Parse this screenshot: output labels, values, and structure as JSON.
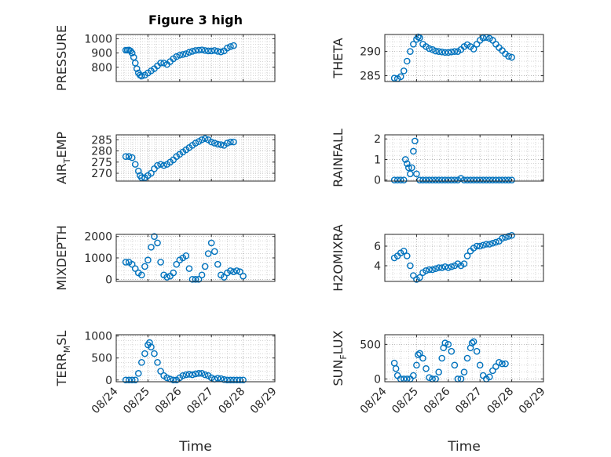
{
  "figure_title": "Figure 3 high",
  "colors": {
    "marker": "#0072BD",
    "axis": "#262626",
    "grid": "#bfbfbf"
  },
  "chart_data": [
    {
      "type": "scatter",
      "ylabel": "PRESSURE",
      "title": "Figure 3 high",
      "yticks": [
        800,
        900,
        1000
      ],
      "ytick_labels": [
        "800",
        "900",
        "1000"
      ],
      "ylim": [
        700,
        1030
      ],
      "xlim": [
        "08/24",
        "08/29"
      ],
      "grid": true,
      "points": [
        [
          0.3,
          920
        ],
        [
          0.35,
          920
        ],
        [
          0.4,
          921
        ],
        [
          0.45,
          915
        ],
        [
          0.5,
          900
        ],
        [
          0.55,
          870
        ],
        [
          0.6,
          830
        ],
        [
          0.65,
          790
        ],
        [
          0.7,
          760
        ],
        [
          0.75,
          745
        ],
        [
          0.8,
          738
        ],
        [
          0.9,
          745
        ],
        [
          1.0,
          760
        ],
        [
          1.1,
          775
        ],
        [
          1.2,
          790
        ],
        [
          1.3,
          810
        ],
        [
          1.4,
          830
        ],
        [
          1.5,
          830
        ],
        [
          1.6,
          820
        ],
        [
          1.7,
          840
        ],
        [
          1.8,
          860
        ],
        [
          1.9,
          875
        ],
        [
          2.0,
          885
        ],
        [
          2.1,
          890
        ],
        [
          2.2,
          895
        ],
        [
          2.3,
          905
        ],
        [
          2.4,
          912
        ],
        [
          2.5,
          918
        ],
        [
          2.6,
          920
        ],
        [
          2.7,
          922
        ],
        [
          2.8,
          918
        ],
        [
          2.9,
          915
        ],
        [
          3.0,
          915
        ],
        [
          3.1,
          918
        ],
        [
          3.2,
          912
        ],
        [
          3.3,
          908
        ],
        [
          3.4,
          915
        ],
        [
          3.5,
          935
        ],
        [
          3.6,
          945
        ],
        [
          3.7,
          952
        ]
      ]
    },
    {
      "type": "scatter",
      "ylabel": "THETA",
      "yticks": [
        285,
        290
      ],
      "ytick_labels": [
        "285",
        "290"
      ],
      "ylim": [
        283.8,
        293.5
      ],
      "xlim": [
        "08/24",
        "08/29"
      ],
      "grid": true,
      "points": [
        [
          0.3,
          284.5
        ],
        [
          0.4,
          284.4
        ],
        [
          0.5,
          284.8
        ],
        [
          0.6,
          286
        ],
        [
          0.7,
          288
        ],
        [
          0.8,
          290
        ],
        [
          0.9,
          291.5
        ],
        [
          1.0,
          292.5
        ],
        [
          1.05,
          293
        ],
        [
          1.1,
          292.8
        ],
        [
          1.2,
          291.5
        ],
        [
          1.3,
          291
        ],
        [
          1.4,
          290.6
        ],
        [
          1.5,
          290.4
        ],
        [
          1.6,
          290.1
        ],
        [
          1.7,
          290
        ],
        [
          1.8,
          289.9
        ],
        [
          1.9,
          289.8
        ],
        [
          2.0,
          289.8
        ],
        [
          2.1,
          289.9
        ],
        [
          2.2,
          290
        ],
        [
          2.3,
          290
        ],
        [
          2.4,
          290.4
        ],
        [
          2.5,
          291
        ],
        [
          2.6,
          291.4
        ],
        [
          2.7,
          291
        ],
        [
          2.8,
          290.5
        ],
        [
          2.9,
          291.5
        ],
        [
          3.0,
          292.3
        ],
        [
          3.1,
          292.8
        ],
        [
          3.2,
          292.9
        ],
        [
          3.3,
          292.7
        ],
        [
          3.4,
          292.3
        ],
        [
          3.5,
          291.5
        ],
        [
          3.6,
          290.8
        ],
        [
          3.7,
          290.2
        ],
        [
          3.8,
          289.5
        ],
        [
          3.9,
          289
        ],
        [
          4.0,
          288.8
        ]
      ]
    },
    {
      "type": "scatter",
      "ylabel": "AIR_TEMP",
      "yticks": [
        270,
        275,
        280,
        285
      ],
      "ytick_labels": [
        "270",
        "275",
        "280",
        "285"
      ],
      "ylim": [
        266.5,
        287.2
      ],
      "xlim": [
        "08/24",
        "08/29"
      ],
      "grid": true,
      "points": [
        [
          0.3,
          277.5
        ],
        [
          0.4,
          277.5
        ],
        [
          0.5,
          277
        ],
        [
          0.6,
          274
        ],
        [
          0.7,
          271
        ],
        [
          0.75,
          269
        ],
        [
          0.8,
          268
        ],
        [
          0.9,
          268
        ],
        [
          1.0,
          269
        ],
        [
          1.1,
          270
        ],
        [
          1.2,
          272
        ],
        [
          1.3,
          273.5
        ],
        [
          1.4,
          274
        ],
        [
          1.5,
          273.5
        ],
        [
          1.6,
          274
        ],
        [
          1.7,
          275
        ],
        [
          1.8,
          276
        ],
        [
          1.9,
          277.5
        ],
        [
          2.0,
          278.5
        ],
        [
          2.1,
          279.5
        ],
        [
          2.2,
          280.5
        ],
        [
          2.3,
          281.5
        ],
        [
          2.4,
          282.5
        ],
        [
          2.5,
          283.5
        ],
        [
          2.6,
          284.2
        ],
        [
          2.7,
          285
        ],
        [
          2.8,
          285.5
        ],
        [
          2.9,
          285
        ],
        [
          3.0,
          284
        ],
        [
          3.1,
          283.5
        ],
        [
          3.2,
          283
        ],
        [
          3.3,
          282.8
        ],
        [
          3.4,
          282.5
        ],
        [
          3.5,
          283.5
        ],
        [
          3.6,
          284
        ],
        [
          3.7,
          284
        ]
      ]
    },
    {
      "type": "scatter",
      "ylabel": "RAINFALL",
      "yticks": [
        0,
        1,
        2
      ],
      "ytick_labels": [
        "0",
        "1",
        "2"
      ],
      "ylim": [
        -0.05,
        2.2
      ],
      "xlim": [
        "08/24",
        "08/29"
      ],
      "grid": true,
      "points": [
        [
          0.3,
          0
        ],
        [
          0.4,
          0
        ],
        [
          0.5,
          0
        ],
        [
          0.6,
          0
        ],
        [
          0.65,
          1.0
        ],
        [
          0.7,
          0.8
        ],
        [
          0.75,
          0.6
        ],
        [
          0.8,
          0.3
        ],
        [
          0.85,
          0.6
        ],
        [
          0.9,
          1.4
        ],
        [
          0.95,
          1.9
        ],
        [
          1.0,
          0.3
        ],
        [
          1.1,
          0
        ],
        [
          1.2,
          0
        ],
        [
          1.3,
          0
        ],
        [
          1.4,
          0
        ],
        [
          1.5,
          0
        ],
        [
          1.6,
          0
        ],
        [
          1.7,
          0
        ],
        [
          1.8,
          0
        ],
        [
          1.9,
          0
        ],
        [
          2.0,
          0
        ],
        [
          2.1,
          0
        ],
        [
          2.2,
          0
        ],
        [
          2.3,
          0
        ],
        [
          2.4,
          0.08
        ],
        [
          2.5,
          0
        ],
        [
          2.6,
          0
        ],
        [
          2.7,
          0
        ],
        [
          2.8,
          0
        ],
        [
          2.9,
          0
        ],
        [
          3.0,
          0
        ],
        [
          3.1,
          0
        ],
        [
          3.2,
          0
        ],
        [
          3.3,
          0
        ],
        [
          3.4,
          0
        ],
        [
          3.5,
          0
        ],
        [
          3.6,
          0
        ],
        [
          3.7,
          0
        ],
        [
          3.8,
          0
        ],
        [
          3.9,
          0
        ],
        [
          4.0,
          0
        ]
      ]
    },
    {
      "type": "scatter",
      "ylabel": "MIXDEPTH",
      "yticks": [
        0,
        1000,
        2000
      ],
      "ytick_labels": [
        "0",
        "1000",
        "2000"
      ],
      "ylim": [
        -100,
        2100
      ],
      "xlim": [
        "08/24",
        "08/29"
      ],
      "grid": true,
      "points": [
        [
          0.3,
          800
        ],
        [
          0.4,
          800
        ],
        [
          0.5,
          700
        ],
        [
          0.6,
          500
        ],
        [
          0.7,
          300
        ],
        [
          0.8,
          200
        ],
        [
          0.9,
          600
        ],
        [
          1.0,
          900
        ],
        [
          1.1,
          1500
        ],
        [
          1.2,
          2000
        ],
        [
          1.3,
          1700
        ],
        [
          1.4,
          800
        ],
        [
          1.5,
          200
        ],
        [
          1.6,
          100
        ],
        [
          1.7,
          150
        ],
        [
          1.8,
          300
        ],
        [
          1.9,
          700
        ],
        [
          2.0,
          900
        ],
        [
          2.1,
          1000
        ],
        [
          2.2,
          1100
        ],
        [
          2.3,
          500
        ],
        [
          2.4,
          0
        ],
        [
          2.5,
          0
        ],
        [
          2.6,
          0
        ],
        [
          2.7,
          200
        ],
        [
          2.8,
          600
        ],
        [
          2.9,
          1200
        ],
        [
          3.0,
          1700
        ],
        [
          3.1,
          1300
        ],
        [
          3.2,
          700
        ],
        [
          3.3,
          200
        ],
        [
          3.4,
          100
        ],
        [
          3.5,
          300
        ],
        [
          3.6,
          400
        ],
        [
          3.7,
          350
        ],
        [
          3.8,
          400
        ],
        [
          3.9,
          350
        ],
        [
          4.0,
          150
        ]
      ]
    },
    {
      "type": "scatter",
      "ylabel": "H2OMIXRA",
      "yticks": [
        4,
        6
      ],
      "ytick_labels": [
        "4",
        "6"
      ],
      "ylim": [
        2.4,
        7.2
      ],
      "xlim": [
        "08/24",
        "08/29"
      ],
      "grid": true,
      "points": [
        [
          0.3,
          4.8
        ],
        [
          0.4,
          5
        ],
        [
          0.5,
          5.3
        ],
        [
          0.6,
          5.5
        ],
        [
          0.7,
          5
        ],
        [
          0.8,
          4
        ],
        [
          0.9,
          3
        ],
        [
          1.0,
          2.6
        ],
        [
          1.1,
          2.8
        ],
        [
          1.2,
          3.3
        ],
        [
          1.3,
          3.5
        ],
        [
          1.4,
          3.6
        ],
        [
          1.5,
          3.6
        ],
        [
          1.6,
          3.7
        ],
        [
          1.7,
          3.8
        ],
        [
          1.8,
          3.8
        ],
        [
          1.9,
          3.9
        ],
        [
          2.0,
          3.8
        ],
        [
          2.1,
          3.9
        ],
        [
          2.2,
          4
        ],
        [
          2.3,
          4.2
        ],
        [
          2.4,
          4
        ],
        [
          2.5,
          4.2
        ],
        [
          2.6,
          5
        ],
        [
          2.7,
          5.5
        ],
        [
          2.8,
          5.8
        ],
        [
          2.9,
          6
        ],
        [
          3.0,
          6
        ],
        [
          3.1,
          6.1
        ],
        [
          3.2,
          6.2
        ],
        [
          3.3,
          6.2
        ],
        [
          3.4,
          6.3
        ],
        [
          3.5,
          6.4
        ],
        [
          3.6,
          6.5
        ],
        [
          3.7,
          6.8
        ],
        [
          3.8,
          6.9
        ],
        [
          3.9,
          7
        ],
        [
          4.0,
          7.1
        ]
      ]
    },
    {
      "type": "scatter",
      "ylabel": "TERR_MSL",
      "yticks": [
        0,
        500,
        1000
      ],
      "ytick_labels": [
        "0",
        "500",
        "1000"
      ],
      "ylim": [
        -40,
        1030
      ],
      "xlim": [
        "08/24",
        "08/29"
      ],
      "xticks": [
        "08/24",
        "08/25",
        "08/26",
        "08/27",
        "08/28",
        "08/29"
      ],
      "xlabel": "Time",
      "grid": true,
      "points": [
        [
          0.3,
          0
        ],
        [
          0.4,
          0
        ],
        [
          0.5,
          0
        ],
        [
          0.6,
          0
        ],
        [
          0.7,
          150
        ],
        [
          0.8,
          400
        ],
        [
          0.9,
          600
        ],
        [
          1.0,
          800
        ],
        [
          1.05,
          850
        ],
        [
          1.1,
          750
        ],
        [
          1.2,
          600
        ],
        [
          1.3,
          400
        ],
        [
          1.4,
          200
        ],
        [
          1.5,
          100
        ],
        [
          1.6,
          50
        ],
        [
          1.7,
          20
        ],
        [
          1.8,
          0
        ],
        [
          1.9,
          0
        ],
        [
          2.0,
          50
        ],
        [
          2.1,
          100
        ],
        [
          2.2,
          120
        ],
        [
          2.3,
          130
        ],
        [
          2.4,
          120
        ],
        [
          2.5,
          140
        ],
        [
          2.6,
          150
        ],
        [
          2.7,
          150
        ],
        [
          2.8,
          120
        ],
        [
          2.9,
          100
        ],
        [
          3.0,
          50
        ],
        [
          3.1,
          20
        ],
        [
          3.2,
          40
        ],
        [
          3.3,
          30
        ],
        [
          3.4,
          10
        ],
        [
          3.5,
          0
        ],
        [
          3.6,
          0
        ],
        [
          3.7,
          0
        ],
        [
          3.8,
          0
        ],
        [
          3.9,
          0
        ],
        [
          4.0,
          0
        ]
      ]
    },
    {
      "type": "scatter",
      "ylabel": "SUN_FLUX",
      "yticks": [
        0,
        500
      ],
      "ytick_labels": [
        "0",
        "500"
      ],
      "ylim": [
        -40,
        640
      ],
      "xlim": [
        "08/24",
        "08/29"
      ],
      "xticks": [
        "08/24",
        "08/25",
        "08/26",
        "08/27",
        "08/28",
        "08/29"
      ],
      "xlabel": "Time",
      "grid": true,
      "points": [
        [
          0.3,
          230
        ],
        [
          0.35,
          150
        ],
        [
          0.4,
          50
        ],
        [
          0.5,
          0
        ],
        [
          0.6,
          0
        ],
        [
          0.7,
          0
        ],
        [
          0.8,
          0
        ],
        [
          0.9,
          50
        ],
        [
          1.0,
          200
        ],
        [
          1.05,
          350
        ],
        [
          1.1,
          370
        ],
        [
          1.2,
          300
        ],
        [
          1.3,
          150
        ],
        [
          1.4,
          20
        ],
        [
          1.5,
          0
        ],
        [
          1.6,
          0
        ],
        [
          1.7,
          100
        ],
        [
          1.8,
          300
        ],
        [
          1.85,
          450
        ],
        [
          1.9,
          520
        ],
        [
          2.0,
          500
        ],
        [
          2.1,
          400
        ],
        [
          2.2,
          200
        ],
        [
          2.3,
          0
        ],
        [
          2.4,
          0
        ],
        [
          2.5,
          100
        ],
        [
          2.6,
          300
        ],
        [
          2.7,
          450
        ],
        [
          2.75,
          520
        ],
        [
          2.8,
          540
        ],
        [
          2.9,
          400
        ],
        [
          3.0,
          200
        ],
        [
          3.1,
          50
        ],
        [
          3.2,
          0
        ],
        [
          3.3,
          30
        ],
        [
          3.4,
          120
        ],
        [
          3.5,
          180
        ],
        [
          3.6,
          240
        ],
        [
          3.7,
          220
        ],
        [
          3.8,
          220
        ]
      ]
    }
  ]
}
